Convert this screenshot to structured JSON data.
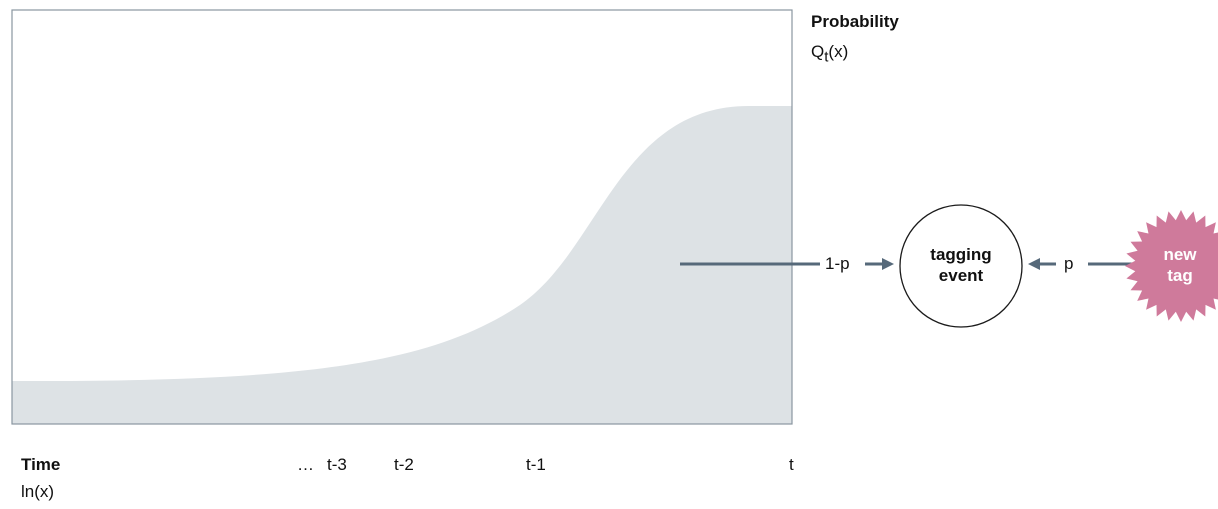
{
  "diagram": {
    "y_axis": {
      "title": "Probability",
      "symbol_base": "Q",
      "symbol_sub": "t",
      "symbol_arg": "(x)"
    },
    "x_axis": {
      "title": "Time",
      "subtitle": "ln(x)",
      "ellipsis": "…",
      "ticks": [
        "t-3",
        "t-2",
        "t-1",
        "t"
      ]
    },
    "flow": {
      "left_label": "1-p",
      "right_label": "p",
      "event_line1": "tagging",
      "event_line2": "event",
      "tag_line1": "new",
      "tag_line2": "tag"
    },
    "colors": {
      "curve_fill": "#dde2e5",
      "frame": "#8a96a0",
      "arrow": "#56697a",
      "tag_fill": "#cf7a9b",
      "tag_text": "#ffffff"
    }
  }
}
